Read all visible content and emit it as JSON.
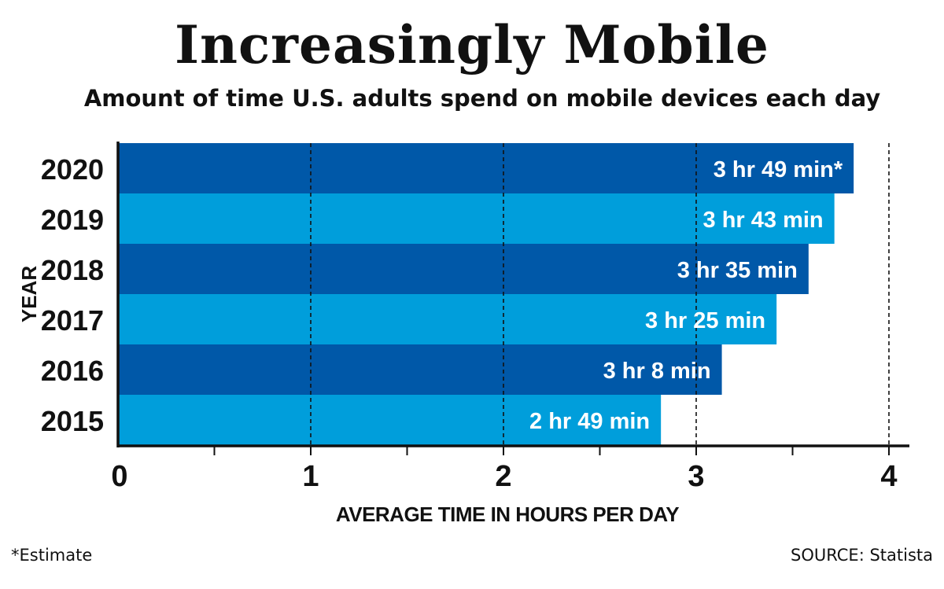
{
  "chart_data": {
    "type": "bar",
    "orientation": "horizontal",
    "title": "Increasingly Mobile",
    "subtitle": "Amount of time U.S. adults spend on mobile devices each day",
    "xlabel": "AVERAGE TIME IN HOURS PER DAY",
    "ylabel": "YEAR",
    "xlim": [
      0,
      4.1
    ],
    "xticks": [
      "0",
      "1",
      "2",
      "3",
      "4"
    ],
    "grid": "vertical dashed at whole hours",
    "categories": [
      "2020",
      "2019",
      "2018",
      "2017",
      "2016",
      "2015"
    ],
    "values": [
      3.817,
      3.717,
      3.583,
      3.417,
      3.133,
      2.817
    ],
    "data_labels": [
      "3 hr 49 min*",
      "3 hr 43 min",
      "3 hr 35 min",
      "3 hr 25 min",
      "3 hr 8 min",
      "2 hr 49 min"
    ],
    "bar_colors": [
      "#0058a8",
      "#009edb",
      "#0058a8",
      "#009edb",
      "#0058a8",
      "#009edb"
    ]
  },
  "footnote": "*Estimate",
  "source": "SOURCE: Statista"
}
